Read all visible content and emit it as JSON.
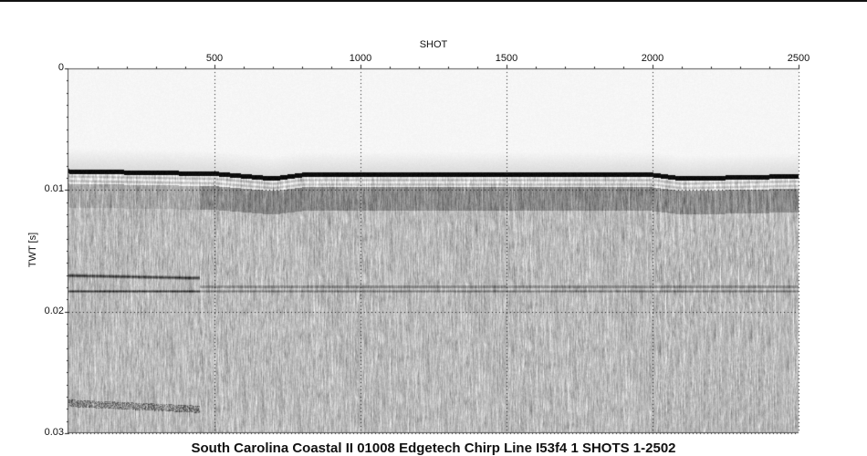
{
  "chart_data": {
    "type": "heatmap",
    "title": "South Carolina Coastal II 01008 Edgetech Chirp Line I53f4  1 SHOTS 1-2502",
    "xlabel": "SHOT",
    "ylabel": "TWT [s]",
    "xlim": [
      0,
      2500
    ],
    "ylim": [
      0,
      0.03
    ],
    "y_inverted": true,
    "x_axis_position": "top",
    "x_ticks": [
      500,
      1000,
      1500,
      2000,
      2500
    ],
    "x_tick_labels": [
      "500",
      "1000",
      "1500",
      "2000",
      "2500"
    ],
    "y_ticks": [
      0,
      0.01,
      0.02,
      0.03
    ],
    "y_tick_labels": [
      "0",
      "0.01",
      "0.02",
      "0.03"
    ],
    "grid": "dotted at major ticks",
    "colormap": "grayscale (black = strong amplitude)",
    "reflectors": {
      "seafloor": {
        "shot": [
          0,
          500,
          700,
          800,
          1000,
          2000,
          2100,
          2500
        ],
        "twt": [
          0.0084,
          0.0086,
          0.009,
          0.0087,
          0.0087,
          0.0087,
          0.009,
          0.0088
        ]
      },
      "shallow_layer_left": {
        "shot": [
          0,
          420
        ],
        "twt": [
          0.017,
          0.0172
        ]
      },
      "layer_mid": {
        "shot": [
          0,
          2500
        ],
        "twt": [
          0.0183,
          0.0183
        ]
      },
      "deep_layer_left": {
        "shot": [
          0,
          450
        ],
        "twt": [
          0.0275,
          0.028
        ]
      }
    }
  }
}
